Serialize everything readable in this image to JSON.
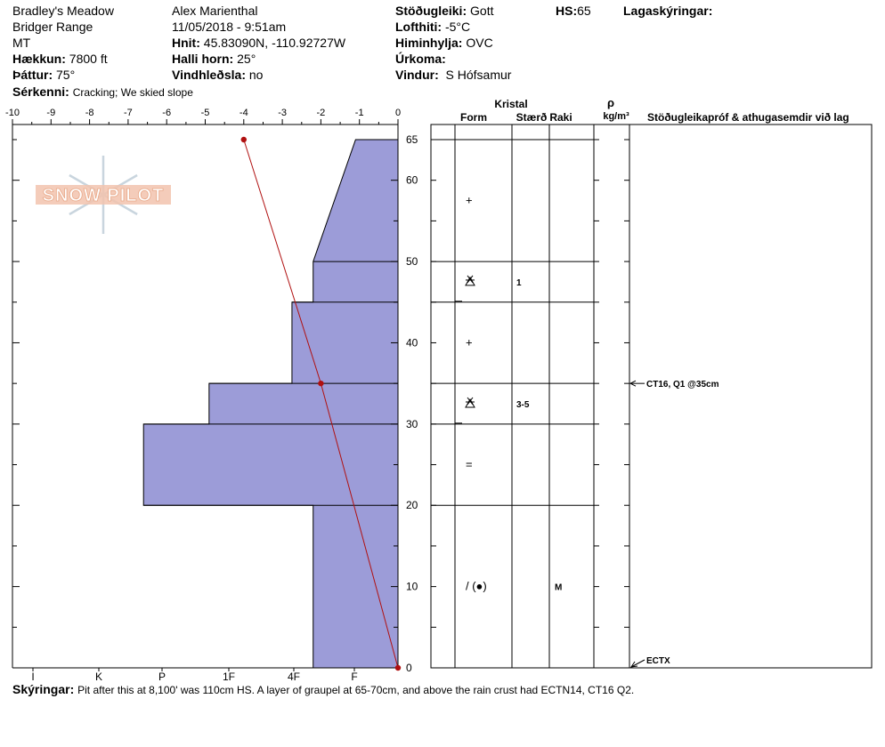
{
  "header": {
    "location": "Bradley's Meadow",
    "range": "Bridger Range",
    "state": "MT",
    "elevation_label": "Hækkun:",
    "elevation_value": "7800 ft",
    "aspect_label": "Þáttur:",
    "aspect_value": "75°",
    "features_label": "Sérkenni:",
    "features_value": "Cracking; We skied slope",
    "observer": "Alex Marienthal",
    "datetime": "11/05/2018 - 9:51am",
    "coords_label": "Hnit:",
    "coords_value": "45.83090N, -110.92727W",
    "slope_label": "Halli horn:",
    "slope_value": "25°",
    "wind_loading_label": "Vindhleðsla:",
    "wind_loading_value": "no",
    "stability_label": "Stöðugleiki:",
    "stability_value": "Gott",
    "air_temp_label": "Lofthiti:",
    "air_temp_value": "-5°C",
    "sky_label": "Himinhylja:",
    "sky_value": "OVC",
    "precip_label": "Úrkoma:",
    "precip_value": "",
    "wind_label": "Vindur:",
    "wind_value": "S Hófsamur",
    "hs_label": "HS:",
    "hs_value": "65",
    "layer_notes_label": "Lagaskýringar:"
  },
  "footer": {
    "notes_label": "Skýringar:",
    "notes_value": "Pit after this at 8,100' was 110cm HS. A layer of graupel at 65-70cm, and above the rain crust had ECTN14, CT16 Q2."
  },
  "table_headers": {
    "crystal": "Kristal",
    "form": "Form",
    "size": "Stærð",
    "moisture": "Raki",
    "density_symbol": "ρ",
    "density_unit": "kg/m³",
    "tests": "Stöðugleikapróf & athugasemdir við lag"
  },
  "logo": {
    "text": "SNOW PILOT"
  },
  "chart_data": {
    "type": "snow-profile",
    "temp_axis": {
      "ticks": [
        -10,
        -9,
        -8,
        -7,
        -6,
        -5,
        -4,
        -3,
        -2,
        -1,
        0
      ],
      "range": [
        -10,
        0
      ]
    },
    "height_axis": {
      "labels": [
        0,
        10,
        20,
        30,
        40,
        50,
        60,
        65
      ],
      "range": [
        0,
        65
      ]
    },
    "hardness_axis": {
      "labels": [
        "I",
        "K",
        "P",
        "1F",
        "4F",
        "F"
      ]
    },
    "hardness_profile": [
      {
        "bottom": 0,
        "top": 20,
        "hardness": 2.2
      },
      {
        "bottom": 20,
        "top": 30,
        "hardness": 6.6
      },
      {
        "bottom": 30,
        "top": 35,
        "hardness": 4.9
      },
      {
        "bottom": 35,
        "top": 45,
        "hardness": 2.75
      },
      {
        "bottom": 45,
        "top": 50,
        "hardness": 2.2
      },
      {
        "bottom": 50,
        "top": 65,
        "hardness_bottom": 2.2,
        "hardness_top": 1.1
      }
    ],
    "temperature_profile": [
      {
        "height": 65,
        "temp": -4
      },
      {
        "height": 35,
        "temp": -2
      },
      {
        "height": 0,
        "temp": 0
      }
    ],
    "layer_boundaries": [
      0,
      20,
      30,
      35,
      45,
      50,
      65
    ],
    "layers": [
      {
        "height": 57.5,
        "form": "+",
        "size": "",
        "moisture": ""
      },
      {
        "height": 47.5,
        "form": "facet-rounding",
        "size": "1",
        "moisture": ""
      },
      {
        "height": 40,
        "form": "+",
        "size": "",
        "moisture": ""
      },
      {
        "height": 32.5,
        "form": "facet-rounding",
        "size": "3-5",
        "moisture": ""
      },
      {
        "height": 25,
        "form": "=",
        "size": "",
        "moisture": ""
      },
      {
        "height": 10,
        "form": "/ (●)",
        "size": "",
        "moisture": "M"
      }
    ],
    "tests": [
      {
        "height": 35,
        "label": "CT16, Q1 @35cm"
      },
      {
        "height": 0,
        "label": "ECTX"
      }
    ]
  }
}
